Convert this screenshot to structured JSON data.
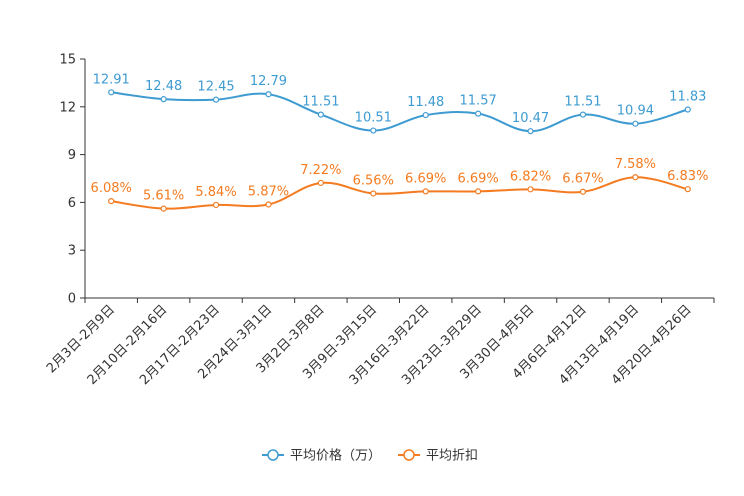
{
  "chart_data": {
    "type": "line",
    "categories": [
      "2月3日-2月9日",
      "2月10日-2月16日",
      "2月17日-2月23日",
      "2月24日-3月1日",
      "3月2日-3月8日",
      "3月9日-3月15日",
      "3月16日-3月22日",
      "3月23日-3月29日",
      "3月30日-4月5日",
      "4月6日-4月12日",
      "4月13日-4月19日",
      "4月20日-4月26日"
    ],
    "ylim": [
      0,
      15
    ],
    "yticks": [
      0,
      3,
      6,
      9,
      12,
      15
    ],
    "series": [
      {
        "name": "平均价格（万）",
        "color": "#3e9bd1",
        "values": [
          12.91,
          12.48,
          12.45,
          12.79,
          11.51,
          10.51,
          11.48,
          11.57,
          10.47,
          11.51,
          10.94,
          11.83
        ],
        "labels": [
          "12.91",
          "12.48",
          "12.45",
          "12.79",
          "11.51",
          "10.51",
          "11.48",
          "11.57",
          "10.47",
          "11.51",
          "10.94",
          "11.83"
        ]
      },
      {
        "name": "平均折扣",
        "color": "#f47b20",
        "values": [
          6.08,
          5.61,
          5.84,
          5.87,
          7.22,
          6.56,
          6.69,
          6.69,
          6.82,
          6.67,
          7.58,
          6.83
        ],
        "labels": [
          "6.08%",
          "5.61%",
          "5.84%",
          "5.87%",
          "7.22%",
          "6.56%",
          "6.69%",
          "6.69%",
          "6.82%",
          "6.67%",
          "7.58%",
          "6.83%"
        ]
      }
    ],
    "legend_position": "bottom-center",
    "grid": false
  }
}
